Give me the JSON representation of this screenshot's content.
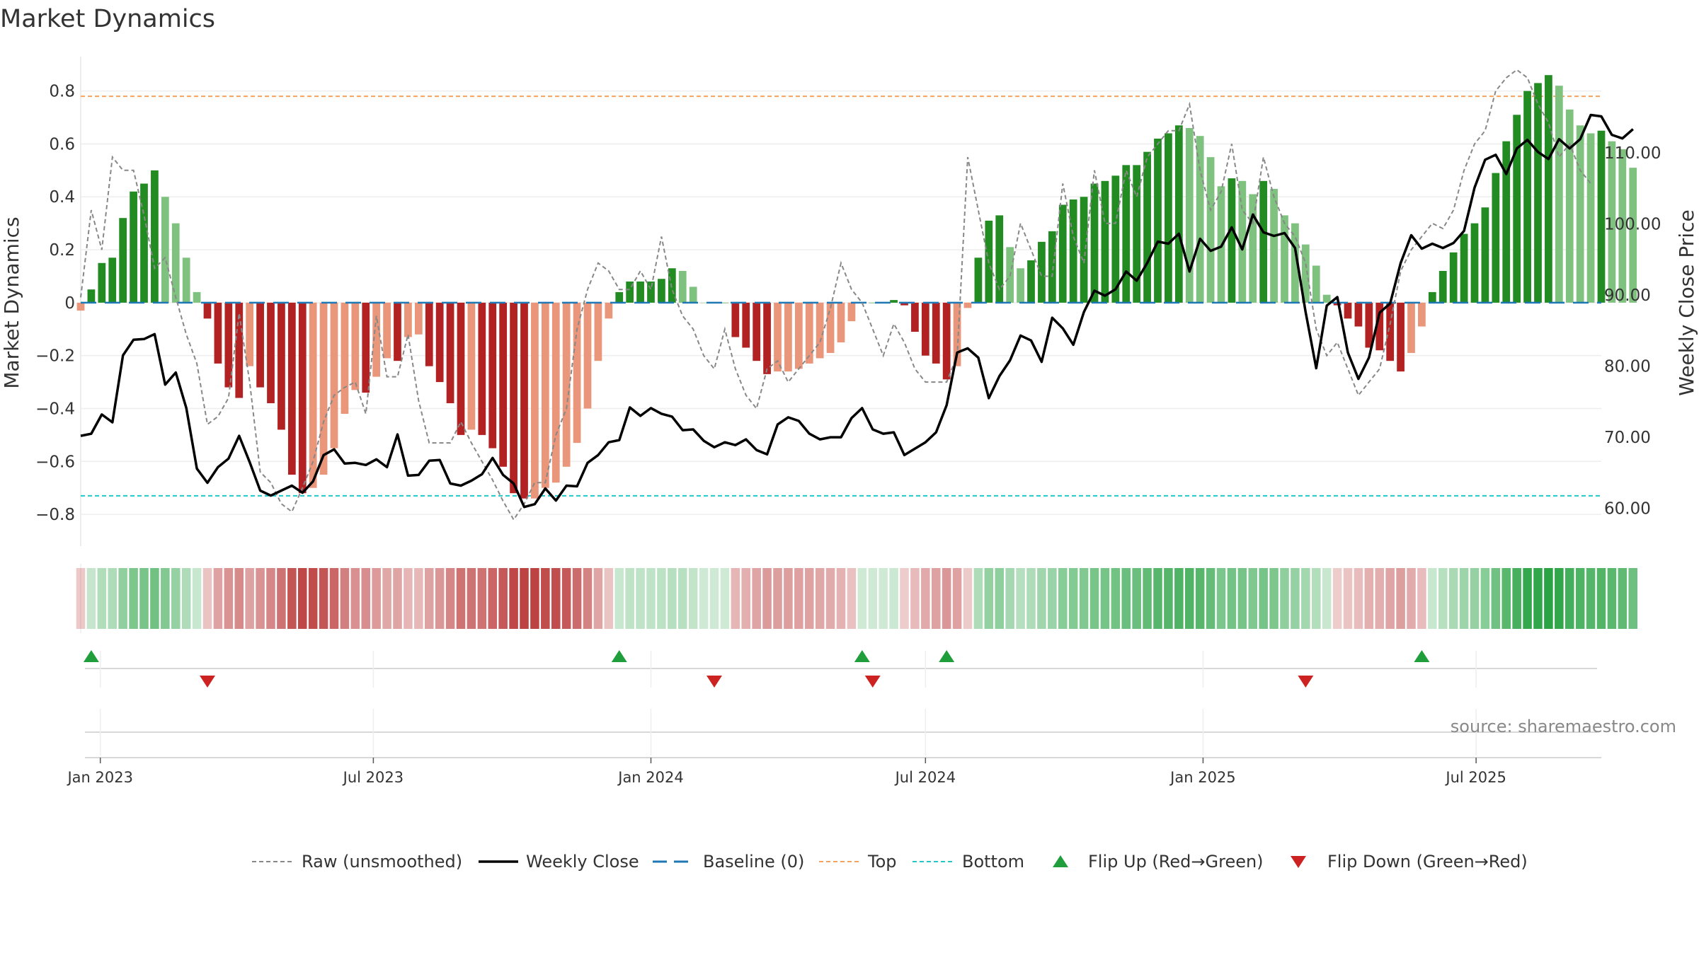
{
  "chart_data": {
    "type": "bar",
    "title": "Market Dynamics",
    "ylabel": "Market Dynamics",
    "y2label": "Weekly Close Price",
    "ylim": [
      -0.92,
      0.93
    ],
    "y2lim": [
      54.7,
      123.5
    ],
    "yticks": [
      "0.8",
      "0.6",
      "0.4",
      "0.2",
      "0",
      "−0.2",
      "−0.4",
      "−0.6",
      "−0.8"
    ],
    "y2ticks": [
      "110.00",
      "100.00",
      "90.00",
      "80.00",
      "70.00",
      "60.00"
    ],
    "xrange": [
      "2022-12-19",
      "2025-09-22"
    ],
    "xticks": [
      {
        "date": "2023-01-01",
        "label": "Jan 2023"
      },
      {
        "date": "2023-07-01",
        "label": "Jul 2023"
      },
      {
        "date": "2024-01-01",
        "label": "Jan 2024"
      },
      {
        "date": "2024-07-01",
        "label": "Jul 2024"
      },
      {
        "date": "2025-01-01",
        "label": "Jan 2025"
      },
      {
        "date": "2025-07-01",
        "label": "Jul 2025"
      }
    ],
    "start_date": "2022-12-19",
    "series": [
      {
        "name": "Market Dynamics",
        "interval_days": 7,
        "values": [
          -0.03,
          0.05,
          0.15,
          0.17,
          0.32,
          0.42,
          0.45,
          0.5,
          0.4,
          0.3,
          0.17,
          0.04,
          -0.06,
          -0.23,
          -0.32,
          -0.36,
          -0.24,
          -0.32,
          -0.38,
          -0.48,
          -0.65,
          -0.72,
          -0.7,
          -0.65,
          -0.55,
          -0.42,
          -0.33,
          -0.34,
          -0.28,
          -0.21,
          -0.22,
          -0.13,
          -0.12,
          -0.24,
          -0.3,
          -0.38,
          -0.5,
          -0.48,
          -0.5,
          -0.55,
          -0.62,
          -0.72,
          -0.74,
          -0.74,
          -0.7,
          -0.68,
          -0.62,
          -0.53,
          -0.4,
          -0.22,
          -0.06,
          0.04,
          0.08,
          0.08,
          0.08,
          0.09,
          0.13,
          0.12,
          0.06,
          0,
          0,
          0,
          -0.13,
          -0.17,
          -0.22,
          -0.27,
          -0.26,
          -0.26,
          -0.25,
          -0.23,
          -0.21,
          -0.19,
          -0.15,
          -0.07,
          0,
          0,
          0,
          0.01,
          -0.01,
          -0.11,
          -0.2,
          -0.23,
          -0.29,
          -0.24,
          -0.02,
          0.17,
          0.31,
          0.33,
          0.21,
          0.13,
          0.16,
          0.23,
          0.27,
          0.37,
          0.39,
          0.4,
          0.45,
          0.46,
          0.48,
          0.52,
          0.52,
          0.57,
          0.62,
          0.64,
          0.67,
          0.66,
          0.63,
          0.55,
          0.44,
          0.47,
          0.46,
          0.41,
          0.46,
          0.43,
          0.33,
          0.3,
          0.22,
          0.14,
          0.03,
          -0.01,
          -0.06,
          -0.09,
          -0.17,
          -0.18,
          -0.22,
          -0.26,
          -0.19,
          -0.09,
          0.04,
          0.12,
          0.19,
          0.26,
          0.3,
          0.36,
          0.49,
          0.61,
          0.71,
          0.8,
          0.83,
          0.86,
          0.82,
          0.73,
          0.67,
          0.64,
          0.65,
          0.61,
          0.58,
          0.51
        ]
      },
      {
        "name": "Raw (unsmoothed)",
        "interval_days": 7,
        "values": [
          0.02,
          0.35,
          0.2,
          0.55,
          0.5,
          0.5,
          0.33,
          0.13,
          0.17,
          0.02,
          -0.12,
          -0.23,
          -0.46,
          -0.43,
          -0.36,
          -0.04,
          -0.3,
          -0.64,
          -0.68,
          -0.76,
          -0.79,
          -0.7,
          -0.6,
          -0.45,
          -0.35,
          -0.32,
          -0.3,
          -0.42,
          -0.05,
          -0.28,
          -0.28,
          -0.12,
          -0.37,
          -0.53,
          -0.53,
          -0.53,
          -0.45,
          -0.53,
          -0.6,
          -0.67,
          -0.75,
          -0.82,
          -0.76,
          -0.68,
          -0.68,
          -0.5,
          -0.4,
          -0.1,
          0.05,
          0.15,
          0.12,
          0.05,
          0.05,
          0.12,
          0.05,
          0.25,
          0.05,
          -0.05,
          -0.1,
          -0.2,
          -0.25,
          -0.1,
          -0.25,
          -0.35,
          -0.4,
          -0.25,
          -0.22,
          -0.3,
          -0.25,
          -0.2,
          -0.15,
          -0.02,
          0.15,
          0.05,
          0,
          -0.1,
          -0.2,
          -0.08,
          -0.15,
          -0.25,
          -0.3,
          -0.3,
          -0.3,
          -0.2,
          0.55,
          0.35,
          0.15,
          0.05,
          0.1,
          0.3,
          0.2,
          0.1,
          0.1,
          0.45,
          0.25,
          0.15,
          0.5,
          0.3,
          0.3,
          0.5,
          0.4,
          0.55,
          0.6,
          0.65,
          0.65,
          0.75,
          0.5,
          0.35,
          0.42,
          0.6,
          0.35,
          0.3,
          0.55,
          0.4,
          0.3,
          0.25,
          0.15,
          -0.1,
          -0.2,
          -0.15,
          -0.25,
          -0.35,
          -0.3,
          -0.25,
          -0.08,
          0.12,
          0.2,
          0.25,
          0.3,
          0.28,
          0.35,
          0.5,
          0.6,
          0.65,
          0.8,
          0.85,
          0.88,
          0.85,
          0.75,
          0.68,
          0.55,
          0.6,
          0.5,
          0.45
        ]
      },
      {
        "name": "Weekly Close",
        "interval_days": 7,
        "values": [
          70.2,
          70.5,
          73.2,
          72.1,
          81.5,
          83.7,
          83.8,
          84.5,
          77.4,
          79.1,
          74.1,
          65.6,
          63.6,
          65.8,
          67,
          70.2,
          66.5,
          62.5,
          61.8,
          62.5,
          63.2,
          62.2,
          63.8,
          67.5,
          68.3,
          66.3,
          66.4,
          66.1,
          66.9,
          65.8,
          70.4,
          64.6,
          64.7,
          66.7,
          66.8,
          63.5,
          63.2,
          63.9,
          64.8,
          67.1,
          64.7,
          63.5,
          60.2,
          60.6,
          62.8,
          61.1,
          63.2,
          63.1,
          66.4,
          67.5,
          69.3,
          69.6,
          74.2,
          73,
          74.1,
          73.3,
          72.9,
          71,
          71.1,
          69.5,
          68.6,
          69.3,
          68.9,
          69.7,
          68.2,
          67.6,
          71.8,
          72.8,
          72.3,
          70.5,
          69.7,
          70,
          70,
          72.7,
          74.1,
          71.1,
          70.5,
          70.7,
          67.5,
          68.4,
          69.3,
          70.7,
          74.5,
          81.9,
          82.5,
          81.2,
          75.5,
          78.6,
          80.8,
          84.3,
          83.6,
          80.6,
          86.8,
          85.3,
          83,
          87.6,
          90.6,
          89.9,
          90.8,
          93.3,
          92,
          94.5,
          97.5,
          97.2,
          98.6,
          93.3,
          97.9,
          96.2,
          96.8,
          99.5,
          96.4,
          101.3,
          98.8,
          98.3,
          98.7,
          96.6,
          87.6,
          79.7,
          88.5,
          89.7,
          81.9,
          78.2,
          81.2,
          87.5,
          88.8,
          94.5,
          98.4,
          96.5,
          97.2,
          96.6,
          97.3,
          99,
          105.1,
          109,
          109.7,
          107,
          110.6,
          111.8,
          110.1,
          109.1,
          111.9,
          110.6,
          111.9,
          115.3,
          115.1,
          112.5,
          112,
          113.3
        ]
      }
    ],
    "reference_lines": [
      {
        "name": "Baseline (0)",
        "y": 0
      },
      {
        "name": "Top",
        "y": 0.78
      },
      {
        "name": "Bottom",
        "y": -0.73
      }
    ],
    "flip_up_weeks": [
      1,
      51,
      74,
      82,
      127
    ],
    "flip_down_weeks": [
      12,
      60,
      75,
      116
    ],
    "legend_position": "bottom-center",
    "legend": [
      "Raw (unsmoothed)",
      "Weekly Close",
      "Baseline (0)",
      "Top",
      "Bottom",
      "Flip Up (Red→Green)",
      "Flip Down (Green→Red)"
    ],
    "source": "source: sharemaestro.com",
    "grid": true
  },
  "colors": {
    "bar_pos_strong": "#228b22",
    "bar_pos_light": "#7fc27f",
    "bar_neg_strong": "#b22222",
    "bar_neg_light": "#e9967a",
    "price_line": "#000000",
    "raw_line": "#888888",
    "baseline": "#1f77b4",
    "top_line": "#f4a460",
    "bottom_line": "#20c8c8",
    "flip_up": "#1f9e3b",
    "flip_down": "#cc2222"
  }
}
